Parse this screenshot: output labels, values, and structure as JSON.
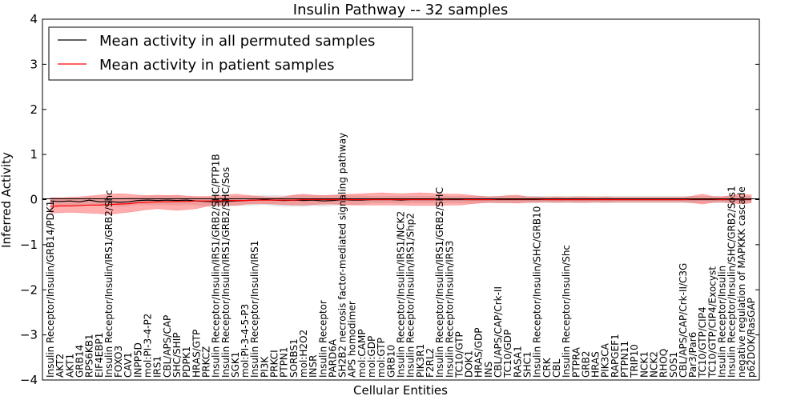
{
  "chart_data": {
    "type": "line",
    "title": "Insulin Pathway -- 32 samples",
    "xlabel": "Cellular Entities",
    "ylabel": "Inferred Activity",
    "ylim": [
      -4,
      4
    ],
    "yticks": [
      -4,
      -3,
      -2,
      -1,
      0,
      1,
      2,
      3,
      4
    ],
    "legend_position": "top-left",
    "categories": [
      "Insulin Receptor/Insulin/GRB14/PDK1",
      "AKT2",
      "AKT1",
      "GRB14",
      "RPS6KB1",
      "EIF4EBP1",
      "Insulin Receptor/Insulin/IRS1/GRB2/Shc",
      "FOXO3",
      "CAV1",
      "INPP5D",
      "mol:PI-3-4-P2",
      "IRS1",
      "CBL/APS/CAP",
      "SHC/SHIP",
      "PDPK1",
      "HRAS/GTP",
      "PRKCZ",
      "Insulin Receptor/Insulin/IRS1/GRB2/SHC/PTP1B",
      "Insulin Receptor/Insulin/IRS1/GRB2/SHC/Sos",
      "SGK1",
      "mol:PI-3-4-5-P3",
      "Insulin Receptor/Insulin/IRS1",
      "PI3K",
      "PRKCI",
      "PTPN1",
      "SORBS1",
      "mol:H2O2",
      "INSR",
      "Insulin Receptor",
      "PARD6A",
      "SH2B2 necrosis factor-mediated signaling pathway",
      "APS homodimer",
      "mol:CAMP",
      "mol:GDP",
      "mol:GTP",
      "GRB10",
      "Insulin Receptor/Insulin/IRS1/NCK2",
      "Insulin Receptor/Insulin/IRS1/Shp2",
      "PIK3R1",
      "F2RL2",
      "Insulin Receptor/Insulin/IRS1/GRB2/SHC",
      "Insulin Receptor/Insulin/IRS3",
      "TC10/GTP",
      "DOK1",
      "HRAS/GDP",
      "INS",
      "CBL/APS/CAP/Crk-II",
      "TC10/GDP",
      "RASA1",
      "SHC1",
      "Insulin Receptor/Insulin/SHC/GRB10",
      "CRK",
      "CBL",
      "Insulin Receptor/Insulin/Shc",
      "PTPRA",
      "GRB2",
      "HRAS",
      "PIK3CA",
      "RAPGEF1",
      "PTPN11",
      "TRIP10",
      "NCK1",
      "NCK2",
      "RHOQ",
      "SOS1",
      "CBL/APS/CAP/Crk-II/C3G",
      "Par3/Par6",
      "TC10/GTP/CIP4",
      "TC10/GTP/CIP4/Exocyst",
      "Insulin Receptor/Insulin",
      "Insulin Receptor/Insulin/SHC/GRB2/Sos1",
      "negative regulation of MAPKKK cascade",
      "p62DOK/RasGAP"
    ],
    "series": [
      {
        "name": "Mean activity in all permuted samples",
        "color": "#000000",
        "values": [
          -0.03,
          -0.04,
          -0.03,
          -0.05,
          -0.01,
          -0.05,
          -0.04,
          -0.06,
          -0.05,
          -0.02,
          -0.01,
          -0.02,
          -0.01,
          -0.02,
          -0.01,
          -0.03,
          -0.04,
          -0.05,
          -0.04,
          -0.03,
          -0.02,
          -0.01,
          0.0,
          -0.01,
          -0.02,
          -0.01,
          -0.02,
          -0.01,
          -0.03,
          -0.02,
          0.0,
          -0.01,
          -0.01,
          0.0,
          0.0,
          0.0,
          -0.01,
          0.0,
          0.0,
          0.0,
          0.0,
          0.0,
          0.0,
          0.0,
          0.0,
          0.0,
          0.0,
          0.0,
          0.0,
          0.0,
          0.0,
          0.0,
          0.0,
          0.0,
          0.0,
          0.0,
          0.0,
          0.0,
          0.0,
          0.0,
          0.0,
          0.0,
          0.0,
          0.0,
          0.0,
          0.0,
          0.0,
          0.0,
          0.0,
          0.0,
          0.0,
          0.0,
          0.0
        ],
        "band_upper": [
          0.06,
          0.05,
          0.06,
          0.04,
          0.06,
          0.05,
          0.06,
          0.05,
          0.06,
          0.07,
          0.08,
          0.08,
          0.09,
          0.08,
          0.07,
          0.06,
          0.06,
          0.06,
          0.07,
          0.08,
          0.08,
          0.09,
          0.1,
          0.1,
          0.09,
          0.1,
          0.1,
          0.1,
          0.09,
          0.1,
          0.1,
          0.1,
          0.09,
          0.08,
          0.08,
          0.08,
          0.08,
          0.08,
          0.08,
          0.08,
          0.08,
          0.08,
          0.08,
          0.08,
          0.08,
          0.08,
          0.08,
          0.08,
          0.08,
          0.08,
          0.08,
          0.08,
          0.08,
          0.08,
          0.08,
          0.08,
          0.08,
          0.08,
          0.08,
          0.08,
          0.08,
          0.08,
          0.08,
          0.08,
          0.08,
          0.08,
          0.08,
          0.08,
          0.08,
          0.08,
          0.08,
          0.08,
          0.08
        ],
        "band_lower": [
          -0.12,
          -0.13,
          -0.12,
          -0.14,
          -0.1,
          -0.14,
          -0.13,
          -0.16,
          -0.15,
          -0.12,
          -0.12,
          -0.13,
          -0.12,
          -0.13,
          -0.11,
          -0.13,
          -0.15,
          -0.16,
          -0.15,
          -0.14,
          -0.14,
          -0.13,
          -0.12,
          -0.14,
          -0.16,
          -0.15,
          -0.16,
          -0.14,
          -0.15,
          -0.14,
          -0.12,
          -0.12,
          -0.11,
          -0.08,
          -0.08,
          -0.08,
          -0.09,
          -0.08,
          -0.08,
          -0.08,
          -0.08,
          -0.08,
          -0.08,
          -0.08,
          -0.08,
          -0.08,
          -0.08,
          -0.08,
          -0.08,
          -0.08,
          -0.08,
          -0.08,
          -0.08,
          -0.08,
          -0.08,
          -0.08,
          -0.08,
          -0.08,
          -0.08,
          -0.08,
          -0.08,
          -0.08,
          -0.08,
          -0.08,
          -0.08,
          -0.08,
          -0.08,
          -0.08,
          -0.08,
          -0.08,
          -0.08,
          -0.08,
          -0.08
        ]
      },
      {
        "name": "Mean activity in patient samples",
        "color": "#ff0000",
        "values": [
          -0.15,
          -0.14,
          -0.14,
          -0.13,
          -0.12,
          -0.12,
          -0.11,
          -0.1,
          -0.09,
          -0.07,
          -0.06,
          -0.05,
          -0.05,
          -0.04,
          -0.04,
          -0.03,
          -0.03,
          -0.03,
          -0.02,
          -0.02,
          -0.02,
          -0.01,
          -0.01,
          -0.01,
          -0.01,
          -0.01,
          0.0,
          0.0,
          0.0,
          0.0,
          0.0,
          0.0,
          0.0,
          0.0,
          0.0,
          0.0,
          0.0,
          0.0,
          0.0,
          0.0,
          0.0,
          0.01,
          0.01,
          0.0,
          0.0,
          0.0,
          0.01,
          0.01,
          0.01,
          0.01,
          0.01,
          0.0,
          0.0,
          0.0,
          0.0,
          0.0,
          0.0,
          0.0,
          0.0,
          0.0,
          0.0,
          0.0,
          0.0,
          0.0,
          0.0,
          0.0,
          0.01,
          0.01,
          0.01,
          0.0,
          0.01,
          0.01,
          0.01
        ],
        "band_upper": [
          0.04,
          0.04,
          0.05,
          0.06,
          0.08,
          0.1,
          0.12,
          0.13,
          0.12,
          0.1,
          0.09,
          0.1,
          0.09,
          0.1,
          0.08,
          0.07,
          0.07,
          0.08,
          0.1,
          0.12,
          0.1,
          0.08,
          0.06,
          0.05,
          0.06,
          0.1,
          0.12,
          0.1,
          0.09,
          0.1,
          0.11,
          0.12,
          0.13,
          0.14,
          0.15,
          0.14,
          0.13,
          0.14,
          0.15,
          0.14,
          0.13,
          0.12,
          0.12,
          0.1,
          0.08,
          0.06,
          0.07,
          0.09,
          0.1,
          0.06,
          0.06,
          0.05,
          0.06,
          0.05,
          0.06,
          0.06,
          0.05,
          0.06,
          0.05,
          0.05,
          0.05,
          0.05,
          0.05,
          0.05,
          0.05,
          0.05,
          0.08,
          0.12,
          0.07,
          0.06,
          0.1,
          0.12,
          0.1
        ],
        "band_lower": [
          -0.3,
          -0.29,
          -0.28,
          -0.29,
          -0.3,
          -0.31,
          -0.33,
          -0.3,
          -0.28,
          -0.25,
          -0.22,
          -0.2,
          -0.22,
          -0.24,
          -0.22,
          -0.2,
          -0.15,
          -0.12,
          -0.12,
          -0.13,
          -0.1,
          -0.09,
          -0.09,
          -0.1,
          -0.11,
          -0.12,
          -0.12,
          -0.11,
          -0.1,
          -0.1,
          -0.11,
          -0.12,
          -0.12,
          -0.12,
          -0.12,
          -0.12,
          -0.12,
          -0.13,
          -0.13,
          -0.13,
          -0.13,
          -0.12,
          -0.12,
          -0.1,
          -0.08,
          -0.06,
          -0.07,
          -0.07,
          -0.08,
          -0.06,
          -0.06,
          -0.05,
          -0.06,
          -0.05,
          -0.06,
          -0.06,
          -0.05,
          -0.06,
          -0.05,
          -0.05,
          -0.05,
          -0.05,
          -0.05,
          -0.05,
          -0.05,
          -0.05,
          -0.07,
          -0.1,
          -0.06,
          -0.05,
          -0.08,
          -0.1,
          -0.07
        ]
      }
    ]
  }
}
